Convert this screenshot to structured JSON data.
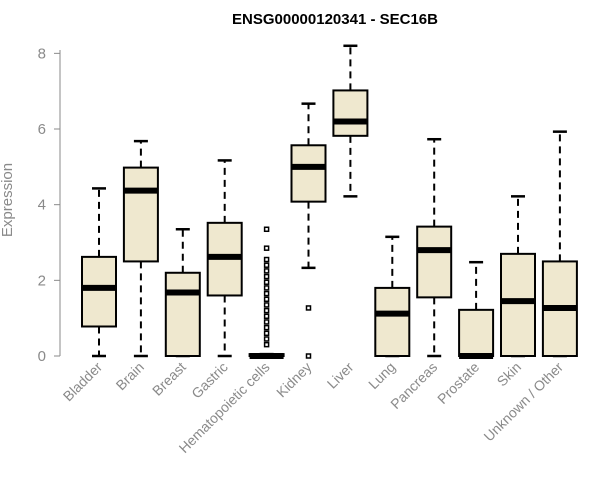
{
  "chart_data": {
    "type": "boxplot",
    "title": "ENSG00000120341 - SEC16B",
    "ylabel": "Expression",
    "xlabel": "",
    "ylim": [
      0,
      8.3
    ],
    "yticks": [
      0,
      2,
      4,
      6,
      8
    ],
    "categories": [
      "Bladder",
      "Brain",
      "Breast",
      "Gastric",
      "Hematopoietic cells",
      "Kidney",
      "Liver",
      "Lung",
      "Pancreas",
      "Prostate",
      "Skin",
      "Unknown / Other"
    ],
    "boxes": [
      {
        "min": 0,
        "q1": 0.78,
        "median": 1.8,
        "q3": 2.62,
        "max": 4.43,
        "outliers": []
      },
      {
        "min": 0,
        "q1": 2.5,
        "median": 4.37,
        "q3": 4.98,
        "max": 5.68,
        "outliers": []
      },
      {
        "min": 0,
        "q1": 0,
        "median": 1.68,
        "q3": 2.2,
        "max": 3.35,
        "outliers": []
      },
      {
        "min": 0,
        "q1": 1.6,
        "median": 2.62,
        "q3": 3.52,
        "max": 5.17,
        "outliers": []
      },
      {
        "min": 0,
        "q1": 0,
        "median": 0,
        "q3": 0.05,
        "max": 0.05,
        "outliers": [
          0.3,
          0.45,
          0.6,
          0.75,
          0.9,
          1.05,
          1.2,
          1.35,
          1.5,
          1.65,
          1.8,
          1.95,
          2.1,
          2.25,
          2.4,
          2.55,
          2.85,
          3.35
        ]
      },
      {
        "min": 2.33,
        "q1": 4.08,
        "median": 5.0,
        "q3": 5.57,
        "max": 6.67,
        "outliers": [
          1.27,
          0
        ]
      },
      {
        "min": 4.22,
        "q1": 5.82,
        "median": 6.2,
        "q3": 7.02,
        "max": 8.2,
        "outliers": []
      },
      {
        "min": 0,
        "q1": 0,
        "median": 1.12,
        "q3": 1.8,
        "max": 3.15,
        "outliers": []
      },
      {
        "min": 0,
        "q1": 1.55,
        "median": 2.8,
        "q3": 3.42,
        "max": 5.73,
        "outliers": []
      },
      {
        "min": 0,
        "q1": 0,
        "median": 0,
        "q3": 1.22,
        "max": 2.48,
        "outliers": []
      },
      {
        "min": 0,
        "q1": 0,
        "median": 1.45,
        "q3": 2.7,
        "max": 4.22,
        "outliers": []
      },
      {
        "min": 0,
        "q1": 0,
        "median": 1.27,
        "q3": 2.5,
        "max": 5.93,
        "outliers": []
      }
    ],
    "colors": {
      "box_fill": "#efe8cf",
      "stroke": "#000000",
      "axis": "#8a8a8a"
    },
    "grid": false,
    "legend": "none"
  }
}
